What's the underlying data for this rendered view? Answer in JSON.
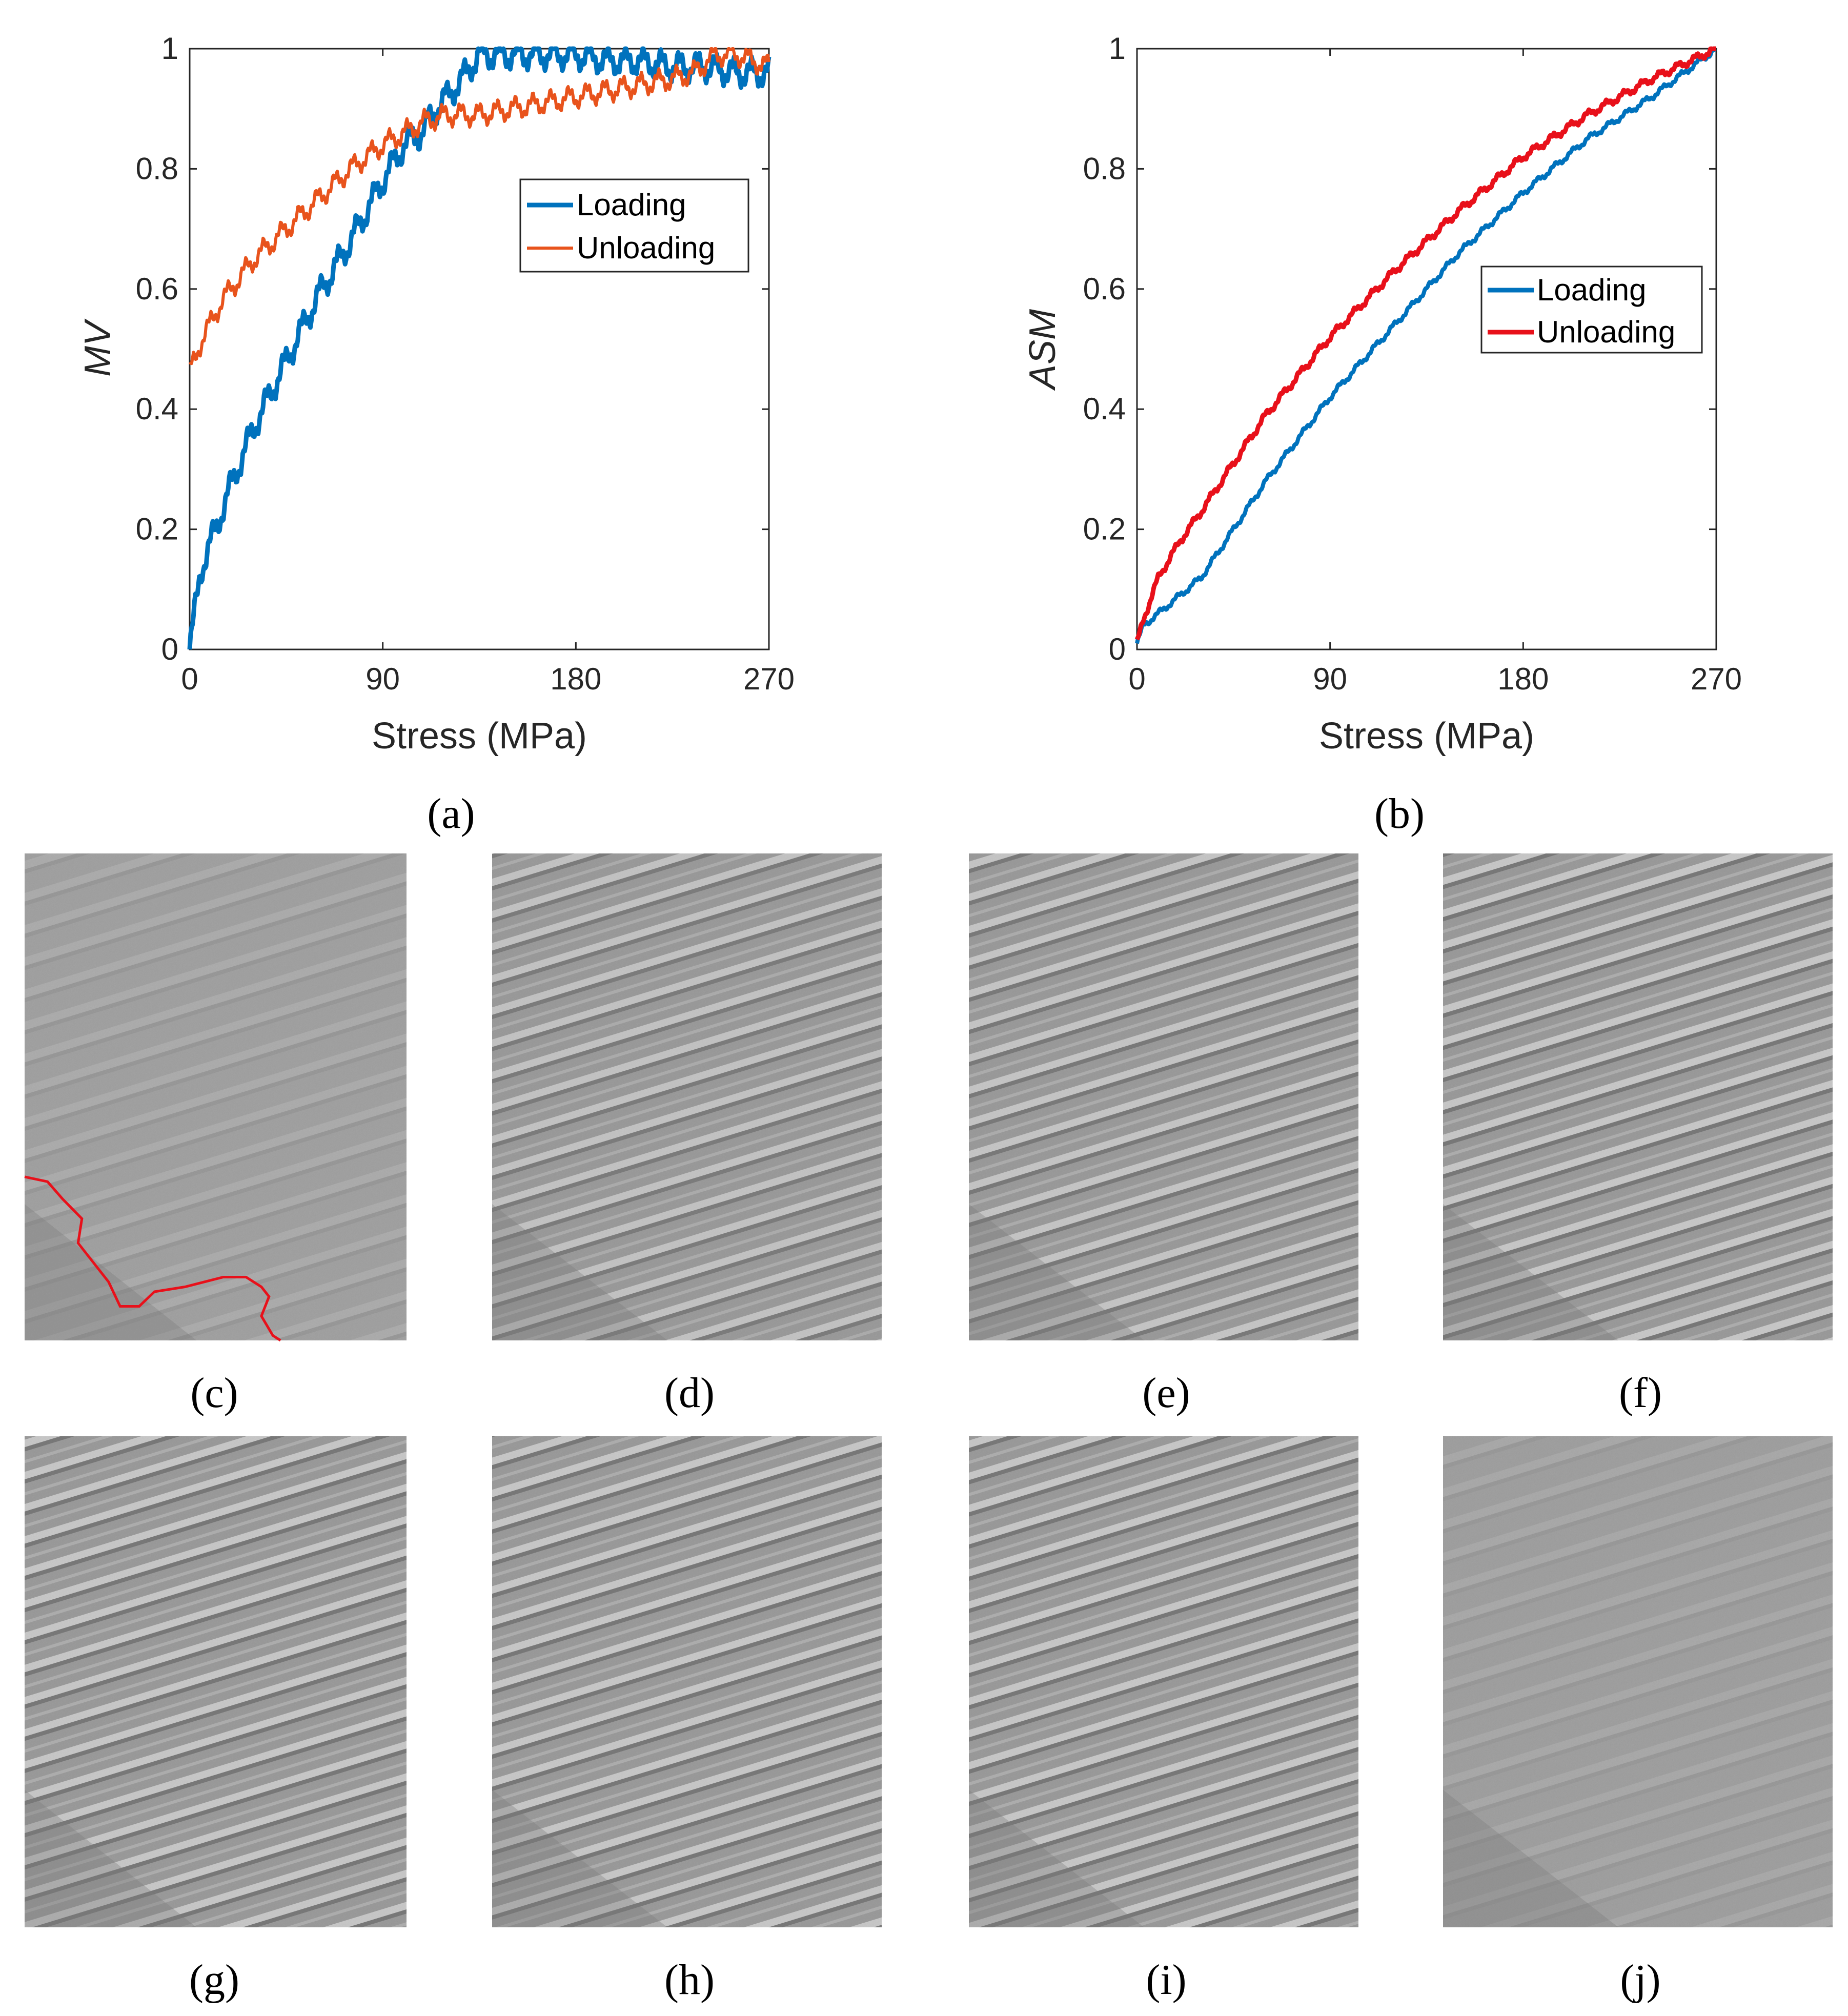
{
  "colors": {
    "loading_blue": "#0072BD",
    "unloading_orange": "#E8531C",
    "unloading_red": "#E8101A",
    "trace_red": "#E8101A"
  },
  "chart_data": [
    {
      "type": "line",
      "panel": "(a)",
      "xlabel": "Stress (MPa)",
      "ylabel": "MV",
      "xlim": [
        0,
        270
      ],
      "ylim": [
        0,
        1
      ],
      "xticks": [
        "0",
        "90",
        "180",
        "270"
      ],
      "yticks": [
        "0",
        "0.2",
        "0.4",
        "0.6",
        "0.8",
        "1"
      ],
      "legend_position": "upper-right-middle",
      "legend": [
        "Loading",
        "Unloading"
      ],
      "series": [
        {
          "name": "Loading",
          "x": [
            0,
            2,
            5,
            10,
            20,
            30,
            45,
            60,
            75,
            90,
            100,
            108,
            115,
            125,
            135,
            150,
            165,
            180,
            195,
            210,
            225,
            240,
            255,
            270
          ],
          "y": [
            0,
            0.05,
            0.13,
            0.18,
            0.28,
            0.37,
            0.48,
            0.59,
            0.68,
            0.78,
            0.84,
            0.86,
            0.9,
            0.94,
            0.99,
            0.99,
            0.99,
            0.99,
            0.98,
            0.98,
            0.97,
            0.97,
            0.96,
            0.96
          ],
          "oscillation": 0.018
        },
        {
          "name": "Unloading",
          "x": [
            0,
            5,
            15,
            30,
            45,
            60,
            75,
            90,
            100,
            110,
            120,
            135,
            150,
            165,
            180,
            195,
            210,
            225,
            235,
            245,
            255,
            262,
            270
          ],
          "y": [
            0.46,
            0.51,
            0.58,
            0.65,
            0.7,
            0.75,
            0.8,
            0.84,
            0.86,
            0.88,
            0.89,
            0.89,
            0.9,
            0.91,
            0.92,
            0.93,
            0.94,
            0.95,
            0.96,
            0.99,
            0.99,
            0.98,
            0.97
          ],
          "oscillation": 0.014
        }
      ]
    },
    {
      "type": "line",
      "panel": "(b)",
      "xlabel": "Stress (MPa)",
      "ylabel": "ASM",
      "xlim": [
        0,
        270
      ],
      "ylim": [
        0,
        1
      ],
      "xticks": [
        "0",
        "90",
        "180",
        "270"
      ],
      "yticks": [
        "0",
        "0.2",
        "0.4",
        "0.6",
        "0.8",
        "1"
      ],
      "legend_position": "right-middle",
      "legend": [
        "Loading",
        "Unloading"
      ],
      "series": [
        {
          "name": "Loading",
          "x": [
            0,
            3,
            10,
            30,
            60,
            90,
            120,
            150,
            180,
            210,
            240,
            270
          ],
          "y": [
            0.01,
            0.04,
            0.06,
            0.12,
            0.28,
            0.42,
            0.54,
            0.66,
            0.76,
            0.85,
            0.92,
            1.0
          ],
          "oscillation": 0.004
        },
        {
          "name": "Unloading",
          "x": [
            0,
            3,
            10,
            20,
            30,
            45,
            60,
            90,
            120,
            150,
            180,
            210,
            240,
            270
          ],
          "y": [
            0.01,
            0.05,
            0.12,
            0.18,
            0.23,
            0.31,
            0.39,
            0.52,
            0.63,
            0.73,
            0.82,
            0.89,
            0.95,
            1.0
          ],
          "oscillation": 0.005
        }
      ]
    }
  ],
  "panels": {
    "a": "(a)",
    "b": "(b)",
    "c": "(c)",
    "d": "(d)",
    "e": "(e)",
    "f": "(f)",
    "g": "(g)",
    "h": "(h)",
    "i": "(i)",
    "j": "(j)"
  },
  "micrographs": [
    {
      "id": "c",
      "contrast": 0.45,
      "has_trace": true
    },
    {
      "id": "d",
      "contrast": 0.8,
      "has_trace": false
    },
    {
      "id": "e",
      "contrast": 0.85,
      "has_trace": false
    },
    {
      "id": "f",
      "contrast": 0.9,
      "has_trace": false
    },
    {
      "id": "g",
      "contrast": 0.95,
      "has_trace": false
    },
    {
      "id": "h",
      "contrast": 0.95,
      "has_trace": false
    },
    {
      "id": "i",
      "contrast": 0.95,
      "has_trace": false
    },
    {
      "id": "j",
      "contrast": 0.35,
      "has_trace": false
    }
  ]
}
